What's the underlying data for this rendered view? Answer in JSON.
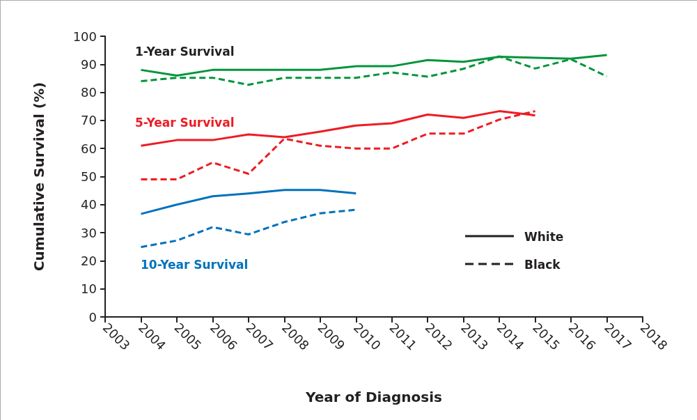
{
  "chart_data": {
    "type": "line",
    "xlabel": "Year of Diagnosis",
    "ylabel": "Cumulative Survival (%)",
    "xlim": [
      2003,
      2018
    ],
    "xticks": [
      2003,
      2004,
      2005,
      2006,
      2007,
      2008,
      2009,
      2010,
      2011,
      2012,
      2013,
      2014,
      2015,
      2016,
      2017,
      2018
    ],
    "ylim": [
      0,
      100
    ],
    "yticks": [
      0,
      10,
      20,
      30,
      40,
      50,
      60,
      70,
      80,
      90,
      100
    ],
    "grid": false,
    "marker": "none",
    "annotations": [
      "1-Year Survival",
      "5-Year Survival",
      "10-Year Survival",
      "White",
      "Black"
    ],
    "series": [
      {
        "color": "#00953a",
        "line_style": "solid",
        "x": [
          2004,
          2005,
          2006,
          2007,
          2008,
          2009,
          2010,
          2011,
          2012,
          2013,
          2014,
          2016,
          2017
        ],
        "values": [
          88,
          86,
          88,
          88,
          88,
          88,
          89.3,
          89.3,
          91.5,
          90.9,
          92.7,
          92,
          93.3
        ]
      },
      {
        "color": "#00953a",
        "line_style": "dashed",
        "x": [
          2004,
          2005,
          2006,
          2007,
          2008,
          2009,
          2010,
          2011,
          2012,
          2013,
          2014,
          2015,
          2016,
          2017
        ],
        "values": [
          84,
          85.2,
          85.2,
          82.7,
          85.2,
          85.2,
          85.2,
          87.1,
          85.6,
          88.4,
          92.8,
          88.5,
          91.8,
          85.7
        ]
      },
      {
        "color": "#ed1c24",
        "line_style": "solid",
        "x": [
          2004,
          2005,
          2006,
          2007,
          2008,
          2009,
          2010,
          2011,
          2012,
          2013,
          2014,
          2015
        ],
        "values": [
          61,
          63,
          63,
          65,
          64,
          66,
          68.2,
          69,
          72.1,
          70.9,
          73.3,
          71.8
        ]
      },
      {
        "color": "#ed1c24",
        "line_style": "dashed",
        "x": [
          2004,
          2005,
          2006,
          2007,
          2008,
          2009,
          2010,
          2011,
          2012,
          2013,
          2014,
          2015
        ],
        "values": [
          49,
          49,
          55,
          51,
          63.5,
          61,
          60,
          60,
          65.3,
          65.3,
          70.3,
          73.3
        ]
      },
      {
        "color": "#0072bc",
        "line_style": "solid",
        "x": [
          2004,
          2005,
          2006,
          2007,
          2008,
          2009,
          2010
        ],
        "values": [
          36.7,
          40,
          43,
          44,
          45.2,
          45.2,
          44
        ]
      },
      {
        "color": "#0072bc",
        "line_style": "dashed",
        "x": [
          2004,
          2005,
          2006,
          2007,
          2008,
          2009,
          2010
        ],
        "values": [
          24.9,
          27.2,
          32,
          29.4,
          33.8,
          36.9,
          38.2
        ]
      }
    ]
  }
}
